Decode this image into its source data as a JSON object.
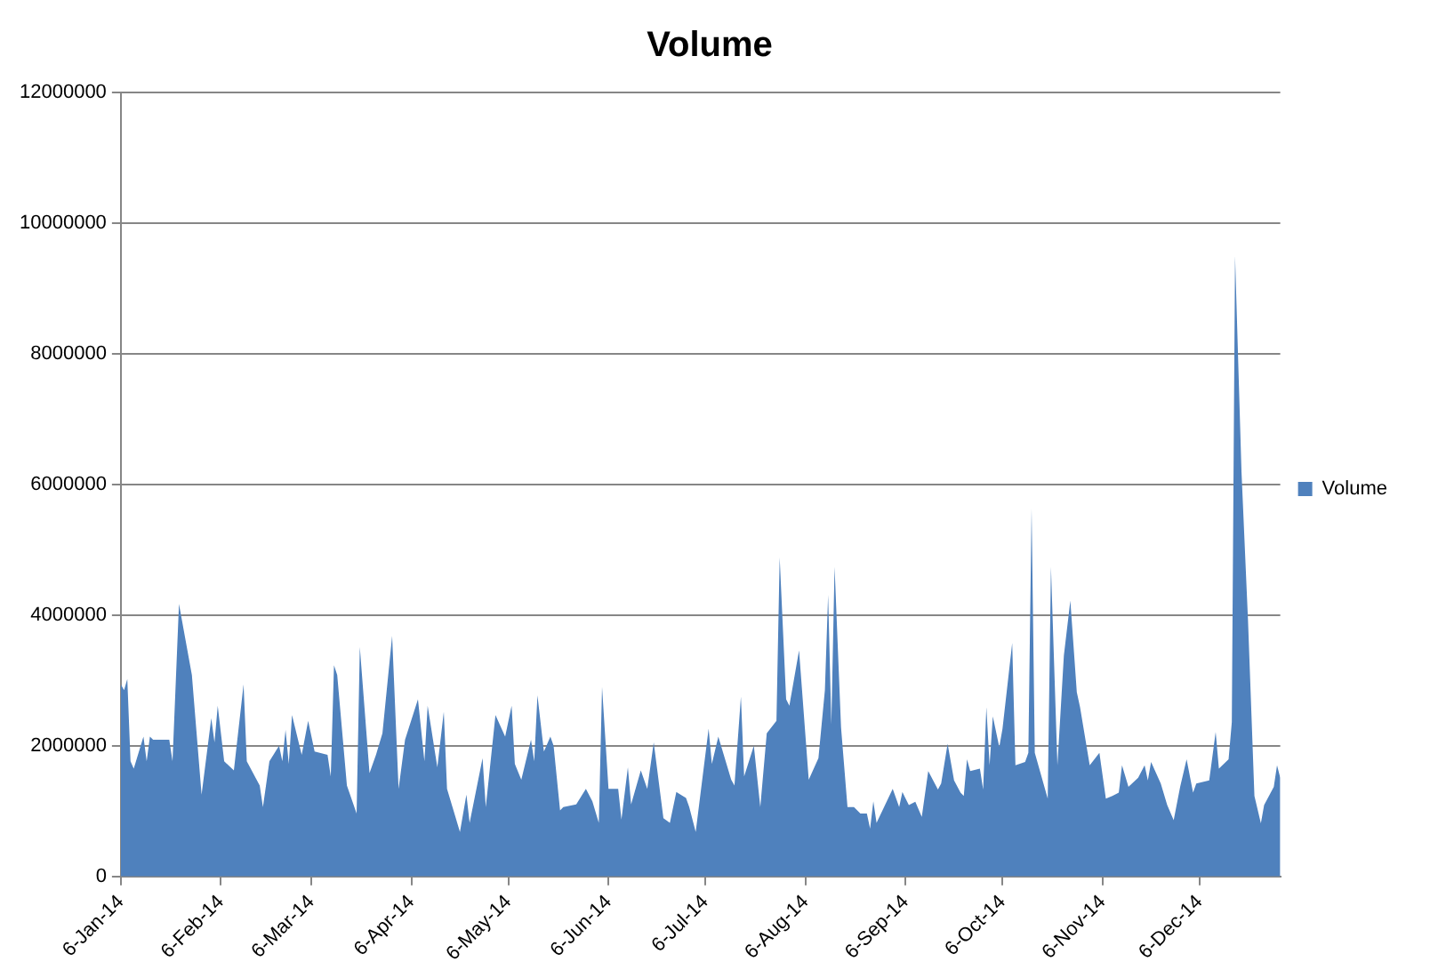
{
  "chart_data": {
    "type": "area",
    "title": "Volume",
    "x": [
      "2014-01-06",
      "2014-01-07",
      "2014-01-08",
      "2014-01-09",
      "2014-01-10",
      "2014-01-13",
      "2014-01-14",
      "2014-01-15",
      "2014-01-16",
      "2014-01-21",
      "2014-01-22",
      "2014-01-24",
      "2014-01-28",
      "2014-01-31",
      "2014-02-03",
      "2014-02-04",
      "2014-02-05",
      "2014-02-07",
      "2014-02-10",
      "2014-02-13",
      "2014-02-14",
      "2014-02-18",
      "2014-02-19",
      "2014-02-21",
      "2014-02-24",
      "2014-02-25",
      "2014-02-26",
      "2014-02-27",
      "2014-02-28",
      "2014-03-03",
      "2014-03-05",
      "2014-03-07",
      "2014-03-11",
      "2014-03-12",
      "2014-03-13",
      "2014-03-14",
      "2014-03-17",
      "2014-03-20",
      "2014-03-21",
      "2014-03-24",
      "2014-03-26",
      "2014-03-28",
      "2014-03-31",
      "2014-04-02",
      "2014-04-04",
      "2014-04-08",
      "2014-04-10",
      "2014-04-11",
      "2014-04-14",
      "2014-04-16",
      "2014-04-17",
      "2014-04-21",
      "2014-04-23",
      "2014-04-24",
      "2014-04-28",
      "2014-04-29",
      "2014-05-01",
      "2014-05-02",
      "2014-05-05",
      "2014-05-07",
      "2014-05-08",
      "2014-05-10",
      "2014-05-13",
      "2014-05-14",
      "2014-05-15",
      "2014-05-17",
      "2014-05-19",
      "2014-05-20",
      "2014-05-22",
      "2014-05-23",
      "2014-05-27",
      "2014-05-30",
      "2014-06-01",
      "2014-06-03",
      "2014-06-04",
      "2014-06-06",
      "2014-06-09",
      "2014-06-10",
      "2014-06-12",
      "2014-06-13",
      "2014-06-16",
      "2014-06-18",
      "2014-06-20",
      "2014-06-23",
      "2014-06-25",
      "2014-06-27",
      "2014-06-30",
      "2014-07-01",
      "2014-07-03",
      "2014-07-07",
      "2014-07-08",
      "2014-07-10",
      "2014-07-14",
      "2014-07-15",
      "2014-07-17",
      "2014-07-18",
      "2014-07-21",
      "2014-07-23",
      "2014-07-25",
      "2014-07-28",
      "2014-07-29",
      "2014-07-31",
      "2014-08-01",
      "2014-08-04",
      "2014-08-07",
      "2014-08-10",
      "2014-08-12",
      "2014-08-13",
      "2014-08-14",
      "2014-08-15",
      "2014-08-17",
      "2014-08-19",
      "2014-08-21",
      "2014-08-23",
      "2014-08-25",
      "2014-08-26",
      "2014-08-27",
      "2014-08-28",
      "2014-09-02",
      "2014-09-04",
      "2014-09-05",
      "2014-09-07",
      "2014-09-09",
      "2014-09-11",
      "2014-09-13",
      "2014-09-16",
      "2014-09-17",
      "2014-09-19",
      "2014-09-21",
      "2014-09-23",
      "2014-09-24",
      "2014-09-25",
      "2014-09-26",
      "2014-09-29",
      "2014-09-30",
      "2014-10-01",
      "2014-10-02",
      "2014-10-03",
      "2014-10-05",
      "2014-10-06",
      "2014-10-09",
      "2014-10-10",
      "2014-10-13",
      "2014-10-14",
      "2014-10-15",
      "2014-10-16",
      "2014-10-20",
      "2014-10-21",
      "2014-10-23",
      "2014-10-25",
      "2014-10-27",
      "2014-10-29",
      "2014-10-30",
      "2014-11-02",
      "2014-11-05",
      "2014-11-07",
      "2014-11-09",
      "2014-11-11",
      "2014-11-12",
      "2014-11-14",
      "2014-11-17",
      "2014-11-19",
      "2014-11-20",
      "2014-11-21",
      "2014-11-24",
      "2014-11-26",
      "2014-11-28",
      "2014-11-30",
      "2014-12-02",
      "2014-12-04",
      "2014-12-05",
      "2014-12-09",
      "2014-12-11",
      "2014-12-12",
      "2014-12-15",
      "2014-12-16",
      "2014-12-17",
      "2014-12-19",
      "2014-12-21",
      "2014-12-23",
      "2014-12-25",
      "2014-12-26",
      "2014-12-29",
      "2014-12-30",
      "2014-12-31"
    ],
    "series": [
      {
        "name": "Volume",
        "color": "#4f81bd",
        "values": [
          2940000,
          2850000,
          3020000,
          1760000,
          1650000,
          2140000,
          1760000,
          2140000,
          2090000,
          2090000,
          1760000,
          4170000,
          3080000,
          1250000,
          2420000,
          2050000,
          2610000,
          1760000,
          1620000,
          2940000,
          1760000,
          1390000,
          1060000,
          1760000,
          2000000,
          1760000,
          2240000,
          1720000,
          2470000,
          1860000,
          2380000,
          1910000,
          1860000,
          1530000,
          3230000,
          3080000,
          1390000,
          960000,
          3510000,
          1580000,
          1860000,
          2190000,
          3680000,
          1340000,
          2090000,
          2710000,
          1760000,
          2610000,
          1670000,
          2520000,
          1340000,
          680000,
          1250000,
          820000,
          1810000,
          1060000,
          2000000,
          2470000,
          2140000,
          2610000,
          1720000,
          1480000,
          2090000,
          1760000,
          2770000,
          1910000,
          2140000,
          2000000,
          1010000,
          1060000,
          1100000,
          1340000,
          1150000,
          820000,
          2900000,
          1340000,
          1340000,
          870000,
          1670000,
          1100000,
          1620000,
          1340000,
          2050000,
          890000,
          820000,
          1290000,
          1200000,
          1060000,
          680000,
          2260000,
          1720000,
          2140000,
          1480000,
          1390000,
          2750000,
          1530000,
          2000000,
          1060000,
          2190000,
          2380000,
          4880000,
          2710000,
          2610000,
          3460000,
          1480000,
          1810000,
          2850000,
          4310000,
          2330000,
          4740000,
          2280000,
          1060000,
          1060000,
          960000,
          960000,
          730000,
          1150000,
          820000,
          1340000,
          1060000,
          1290000,
          1090000,
          1140000,
          910000,
          1610000,
          1330000,
          1420000,
          2030000,
          1470000,
          1280000,
          1230000,
          1790000,
          1610000,
          1650000,
          1330000,
          2590000,
          1700000,
          2450000,
          1980000,
          2260000,
          3570000,
          1700000,
          1750000,
          1890000,
          5630000,
          1890000,
          1190000,
          4740000,
          1700000,
          3380000,
          4220000,
          2820000,
          2590000,
          1700000,
          1890000,
          1190000,
          1230000,
          1280000,
          1700000,
          1370000,
          1510000,
          1700000,
          1470000,
          1750000,
          1420000,
          1090000,
          860000,
          1370000,
          1790000,
          1280000,
          1420000,
          1470000,
          2210000,
          1650000,
          1790000,
          2360000,
          9500000,
          6190000,
          3940000,
          1230000,
          810000,
          1090000,
          1370000,
          1700000,
          1510000
        ]
      }
    ],
    "xlim": [
      "2014-01-06",
      "2014-12-31"
    ],
    "xticks": [
      {
        "value": "2014-01-06",
        "label": "6-Jan-14"
      },
      {
        "value": "2014-02-06",
        "label": "6-Feb-14"
      },
      {
        "value": "2014-03-06",
        "label": "6-Mar-14"
      },
      {
        "value": "2014-04-06",
        "label": "6-Apr-14"
      },
      {
        "value": "2014-05-06",
        "label": "6-May-14"
      },
      {
        "value": "2014-06-06",
        "label": "6-Jun-14"
      },
      {
        "value": "2014-07-06",
        "label": "6-Jul-14"
      },
      {
        "value": "2014-08-06",
        "label": "6-Aug-14"
      },
      {
        "value": "2014-09-06",
        "label": "6-Sep-14"
      },
      {
        "value": "2014-10-06",
        "label": "6-Oct-14"
      },
      {
        "value": "2014-11-06",
        "label": "6-Nov-14"
      },
      {
        "value": "2014-12-06",
        "label": "6-Dec-14"
      }
    ],
    "ylim": [
      0,
      12000000
    ],
    "yticks": [
      0,
      2000000,
      4000000,
      6000000,
      8000000,
      10000000,
      12000000
    ],
    "grid": "y",
    "legend": "right"
  }
}
